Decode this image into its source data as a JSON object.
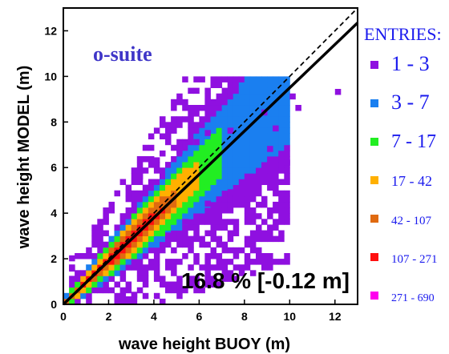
{
  "chart_data": {
    "type": "heatmap",
    "title": "",
    "annotation_label": "o-suite",
    "statistic": "16.8 % [-0.12 m]",
    "xlabel": "wave height BUOY (m)",
    "ylabel": "wave height MODEL (m)",
    "xlim": [
      0,
      13
    ],
    "ylim": [
      0,
      13
    ],
    "xticks": [
      "0",
      "2",
      "4",
      "6",
      "8",
      "10",
      "12"
    ],
    "yticks": [
      "0",
      "2",
      "4",
      "6",
      "8",
      "10",
      "12"
    ],
    "bin_width_m": 0.25,
    "grid": false,
    "reference_line": {
      "style": "dashed",
      "slope": 1.0,
      "intercept": 0.0,
      "description": "y = x"
    },
    "fit_line": {
      "style": "solid",
      "slope": 0.95,
      "intercept": 0.0
    },
    "legend": {
      "title": "ENTRIES:",
      "placement": "right",
      "classes": [
        {
          "label": "1 - 3",
          "color": "#8f10e0"
        },
        {
          "label": "3 - 7",
          "color": "#1a7ff0"
        },
        {
          "label": "7 - 17",
          "color": "#22ee22"
        },
        {
          "label": "17 - 42",
          "color": "#ffb000"
        },
        {
          "label": "42 - 107",
          "color": "#e06a10"
        },
        {
          "label": "107 - 271",
          "color": "#ff1010"
        },
        {
          "label": "271 - 690",
          "color": "#ff00ee"
        }
      ]
    },
    "density_band": [
      {
        "x": 0.25,
        "center": 0.35,
        "spread": [
          0,
          1,
          2,
          2,
          3,
          3,
          4,
          4,
          5
        ]
      },
      {
        "x": 1.0,
        "center": 1.05,
        "spread": [
          0.15,
          0.35,
          0.6,
          0.85,
          1.1,
          1.35,
          1.6,
          1.8
        ]
      },
      {
        "x": 2.0,
        "center": 1.95,
        "spread": [
          0.2,
          0.45,
          0.75,
          1.0,
          1.3,
          1.55,
          1.8
        ]
      },
      {
        "x": 3.0,
        "center": 2.9,
        "spread": [
          0.25,
          0.5,
          0.8,
          1.1,
          1.4,
          1.65,
          1.9
        ]
      },
      {
        "x": 4.0,
        "center": 3.85,
        "spread": [
          0.3,
          0.6,
          0.9,
          1.2,
          1.5,
          1.75,
          2.0
        ]
      },
      {
        "x": 5.0,
        "center": 4.8,
        "spread": [
          0.5,
          0.9,
          1.3,
          1.65,
          1.95
        ]
      },
      {
        "x": 6.0,
        "center": 5.75,
        "spread": [
          0.8,
          1.4,
          1.8,
          2.1
        ]
      },
      {
        "x": 7.0,
        "center": 6.7,
        "spread": [
          1.5,
          2.0
        ]
      },
      {
        "x": 8.0,
        "center": 7.6,
        "spread": [
          1.6
        ]
      },
      {
        "x": 9.0,
        "center": 8.4,
        "spread": [
          1.2
        ]
      },
      {
        "x": 10.0,
        "center": 8.8,
        "spread": [
          0.4
        ]
      }
    ],
    "outliers": [
      [
        12.0,
        9.2
      ],
      [
        10.0,
        9.0
      ],
      [
        10.25,
        8.5
      ],
      [
        9.75,
        6.1
      ],
      [
        9.0,
        6.7
      ],
      [
        8.25,
        5.3
      ],
      [
        9.25,
        7.6
      ],
      [
        8.75,
        8.3
      ],
      [
        7.5,
        4.3
      ],
      [
        7.25,
        4.8
      ],
      [
        6.5,
        4.0
      ],
      [
        6.25,
        4.3
      ],
      [
        5.75,
        3.7
      ],
      [
        5.25,
        3.5
      ],
      [
        4.5,
        2.9
      ],
      [
        3.0,
        0.3
      ],
      [
        2.75,
        0.1
      ],
      [
        0.25,
        1.9
      ],
      [
        0.25,
        1.45
      ],
      [
        3.25,
        5.5
      ],
      [
        4.0,
        6.2
      ],
      [
        5.0,
        6.6
      ],
      [
        5.75,
        7.0
      ],
      [
        6.25,
        7.4
      ],
      [
        7.25,
        7.5
      ]
    ]
  }
}
